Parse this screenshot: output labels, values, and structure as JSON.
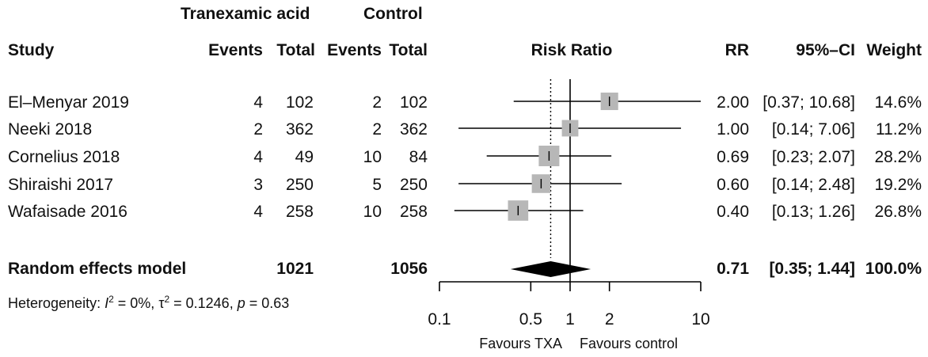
{
  "header": {
    "group1": "Tranexamic acid",
    "group2": "Control",
    "study": "Study",
    "events1": "Events",
    "total1": "Total",
    "events2": "Events",
    "total2": "Total",
    "plot_title": "Risk Ratio",
    "rr": "RR",
    "ci": "95%–CI",
    "weight": "Weight"
  },
  "studies": [
    {
      "name": "El–Menyar 2019",
      "events1": "4",
      "total1": "102",
      "events2": "2",
      "total2": "102",
      "rr_text": "2.00",
      "ci_text": "[0.37; 10.68]",
      "weight_text": "14.6%"
    },
    {
      "name": "Neeki 2018",
      "events1": "2",
      "total1": "362",
      "events2": "2",
      "total2": "362",
      "rr_text": "1.00",
      "ci_text": "[0.14;  7.06]",
      "weight_text": "11.2%"
    },
    {
      "name": "Cornelius 2018",
      "events1": "4",
      "total1": "49",
      "events2": "10",
      "total2": "84",
      "rr_text": "0.69",
      "ci_text": "[0.23;  2.07]",
      "weight_text": "28.2%"
    },
    {
      "name": "Shiraishi 2017",
      "events1": "3",
      "total1": "250",
      "events2": "5",
      "total2": "250",
      "rr_text": "0.60",
      "ci_text": "[0.14;  2.48]",
      "weight_text": "19.2%"
    },
    {
      "name": "Wafaisade 2016",
      "events1": "4",
      "total1": "258",
      "events2": "10",
      "total2": "258",
      "rr_text": "0.40",
      "ci_text": "[0.13;  1.26]",
      "weight_text": "26.8%"
    }
  ],
  "pooled": {
    "label": "Random effects model",
    "total1": "1021",
    "total2": "1056",
    "rr_text": "0.71",
    "ci_text": "[0.35;  1.44]",
    "weight_text": "100.0%"
  },
  "heterogeneity": {
    "prefix": "Heterogeneity: ",
    "i_sym": "I",
    "i_sup": "2",
    "i_val": " = 0%, ",
    "tau_sym": "τ",
    "tau_sup": "2",
    "tau_val": " = 0.1246, ",
    "p_sym": "p",
    "p_val": " = 0.63"
  },
  "axis": {
    "ticks": [
      0.1,
      0.5,
      1,
      2,
      10
    ],
    "tick_labels": [
      "0.1",
      "0.5",
      "1",
      "2",
      "10"
    ],
    "favours_left": "Favours TXA",
    "favours_right": "Favours control"
  },
  "colors": {
    "square": "#b7b7b7",
    "diamond": "#000000",
    "line": "#000000",
    "text": "#111111"
  },
  "chart_data": {
    "type": "forest",
    "title": "Risk Ratio",
    "scale": "log",
    "xlim": [
      0.1,
      10
    ],
    "null_value": 1,
    "pooled_reference": 0.71,
    "series": [
      {
        "name": "El–Menyar 2019",
        "rr": 2.0,
        "ci_low": 0.37,
        "ci_high": 10.68,
        "weight": 14.6
      },
      {
        "name": "Neeki 2018",
        "rr": 1.0,
        "ci_low": 0.14,
        "ci_high": 7.06,
        "weight": 11.2
      },
      {
        "name": "Cornelius 2018",
        "rr": 0.69,
        "ci_low": 0.23,
        "ci_high": 2.07,
        "weight": 28.2
      },
      {
        "name": "Shiraishi 2017",
        "rr": 0.6,
        "ci_low": 0.14,
        "ci_high": 2.48,
        "weight": 19.2
      },
      {
        "name": "Wafaisade 2016",
        "rr": 0.4,
        "ci_low": 0.13,
        "ci_high": 1.26,
        "weight": 26.8
      }
    ],
    "pooled": {
      "name": "Random effects model",
      "rr": 0.71,
      "ci_low": 0.35,
      "ci_high": 1.44,
      "weight": 100.0
    }
  }
}
